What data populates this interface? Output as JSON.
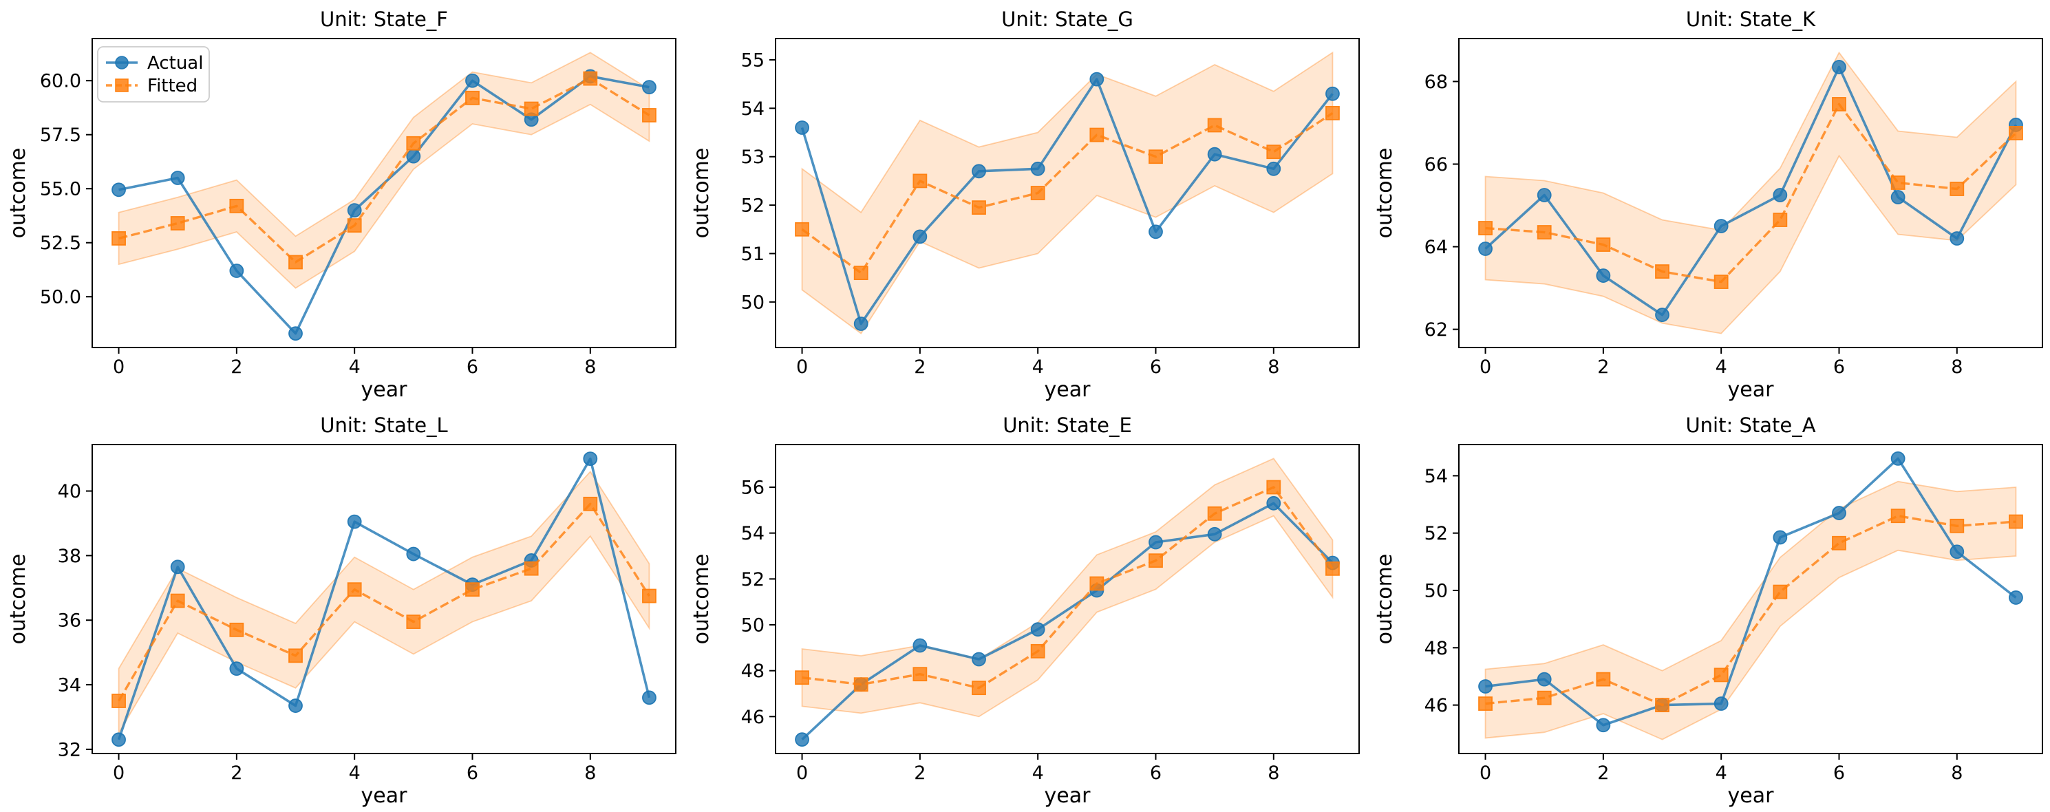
{
  "figure": {
    "background": "#ffffff",
    "text_color": "#000000",
    "spine_color": "#000000",
    "colors": {
      "actual": "#1f77b4",
      "fitted": "#ff7f0e",
      "band_fill": "#ff7f0e",
      "band_fill_opacity": 0.19,
      "band_edge_opacity": 0.35,
      "line_opacity": 0.8
    },
    "legend": {
      "location": "upper left",
      "shown_on_subplot": "Unit: State_F",
      "border_color": "#cccccc",
      "items": [
        {
          "label": "Actual",
          "color": "#1f77b4",
          "marker": "circle",
          "line": "solid"
        },
        {
          "label": "Fitted",
          "color": "#ff7f0e",
          "marker": "square",
          "line": "dashed"
        }
      ]
    }
  },
  "chart_data": [
    {
      "type": "line",
      "title": "Unit: State_F",
      "xlabel": "year",
      "ylabel": "outcome",
      "x": [
        0,
        1,
        2,
        3,
        4,
        5,
        6,
        7,
        8,
        9
      ],
      "series": [
        {
          "name": "Actual",
          "values": [
            54.95,
            55.5,
            51.2,
            48.3,
            54.0,
            56.5,
            60.0,
            58.2,
            60.2,
            59.7
          ]
        },
        {
          "name": "Fitted",
          "values": [
            52.7,
            53.4,
            54.2,
            51.6,
            53.3,
            57.1,
            59.2,
            58.7,
            60.1,
            58.4
          ]
        }
      ],
      "band": {
        "around": "Fitted",
        "half_width": 1.2
      },
      "xlim": [
        -0.45,
        9.45
      ],
      "ylim": [
        47.65,
        61.95
      ],
      "xticks": [
        "0",
        "2",
        "4",
        "6",
        "8"
      ],
      "yticks": [
        "50.0",
        "52.5",
        "55.0",
        "57.5",
        "60.0"
      ],
      "grid": false,
      "show_legend": true
    },
    {
      "type": "line",
      "title": "Unit: State_G",
      "xlabel": "year",
      "ylabel": "outcome",
      "x": [
        0,
        1,
        2,
        3,
        4,
        5,
        6,
        7,
        8,
        9
      ],
      "series": [
        {
          "name": "Actual",
          "values": [
            53.6,
            49.55,
            51.35,
            52.7,
            52.75,
            54.6,
            51.45,
            53.05,
            52.75,
            54.3
          ]
        },
        {
          "name": "Fitted",
          "values": [
            51.5,
            50.6,
            52.5,
            51.95,
            52.25,
            53.45,
            53.0,
            53.65,
            53.1,
            53.9
          ]
        }
      ],
      "band": {
        "around": "Fitted",
        "half_width": 1.25
      },
      "xlim": [
        -0.45,
        9.45
      ],
      "ylim": [
        49.06,
        55.44
      ],
      "xticks": [
        "0",
        "2",
        "4",
        "6",
        "8"
      ],
      "yticks": [
        "50",
        "51",
        "52",
        "53",
        "54",
        "55"
      ],
      "grid": false,
      "show_legend": false
    },
    {
      "type": "line",
      "title": "Unit: State_K",
      "xlabel": "year",
      "ylabel": "outcome",
      "x": [
        0,
        1,
        2,
        3,
        4,
        5,
        6,
        7,
        8,
        9
      ],
      "series": [
        {
          "name": "Actual",
          "values": [
            63.95,
            65.25,
            63.3,
            62.35,
            64.5,
            65.25,
            68.35,
            65.2,
            64.2,
            66.95
          ]
        },
        {
          "name": "Fitted",
          "values": [
            64.45,
            64.35,
            64.05,
            63.4,
            63.15,
            64.65,
            67.45,
            65.55,
            65.4,
            66.75
          ]
        }
      ],
      "band": {
        "around": "Fitted",
        "half_width": 1.25
      },
      "xlim": [
        -0.45,
        9.45
      ],
      "ylim": [
        61.56,
        69.04
      ],
      "xticks": [
        "0",
        "2",
        "4",
        "6",
        "8"
      ],
      "yticks": [
        "62",
        "64",
        "66",
        "68"
      ],
      "grid": false,
      "show_legend": false
    },
    {
      "type": "line",
      "title": "Unit: State_L",
      "xlabel": "year",
      "ylabel": "outcome",
      "x": [
        0,
        1,
        2,
        3,
        4,
        5,
        6,
        7,
        8,
        9
      ],
      "series": [
        {
          "name": "Actual",
          "values": [
            32.3,
            37.65,
            34.5,
            33.35,
            39.05,
            38.05,
            37.1,
            37.85,
            41.0,
            33.6
          ]
        },
        {
          "name": "Fitted",
          "values": [
            33.5,
            36.6,
            35.7,
            34.9,
            36.95,
            35.95,
            36.95,
            37.6,
            39.6,
            36.75
          ]
        }
      ],
      "band": {
        "around": "Fitted",
        "half_width": 1.0
      },
      "xlim": [
        -0.45,
        9.45
      ],
      "ylim": [
        31.87,
        41.44
      ],
      "xticks": [
        "0",
        "2",
        "4",
        "6",
        "8"
      ],
      "yticks": [
        "32",
        "34",
        "36",
        "38",
        "40"
      ],
      "grid": false,
      "show_legend": false
    },
    {
      "type": "line",
      "title": "Unit: State_E",
      "xlabel": "year",
      "ylabel": "outcome",
      "x": [
        0,
        1,
        2,
        3,
        4,
        5,
        6,
        7,
        8,
        9
      ],
      "series": [
        {
          "name": "Actual",
          "values": [
            45.0,
            47.4,
            49.1,
            48.5,
            49.8,
            51.5,
            53.6,
            53.95,
            55.3,
            52.7
          ]
        },
        {
          "name": "Fitted",
          "values": [
            47.7,
            47.4,
            47.85,
            47.25,
            48.85,
            51.8,
            52.8,
            54.85,
            56.0,
            52.45
          ]
        }
      ],
      "band": {
        "around": "Fitted",
        "half_width": 1.25
      },
      "xlim": [
        -0.45,
        9.45
      ],
      "ylim": [
        44.39,
        57.86
      ],
      "xticks": [
        "0",
        "2",
        "4",
        "6",
        "8"
      ],
      "yticks": [
        "46",
        "48",
        "50",
        "52",
        "54",
        "56"
      ],
      "grid": false,
      "show_legend": false
    },
    {
      "type": "line",
      "title": "Unit: State_A",
      "xlabel": "year",
      "ylabel": "outcome",
      "x": [
        0,
        1,
        2,
        3,
        4,
        5,
        6,
        7,
        8,
        9
      ],
      "series": [
        {
          "name": "Actual",
          "values": [
            46.65,
            46.9,
            45.3,
            46.0,
            46.05,
            51.85,
            52.7,
            54.6,
            51.35,
            49.75
          ]
        },
        {
          "name": "Fitted",
          "values": [
            46.05,
            46.25,
            46.9,
            46.0,
            47.05,
            49.95,
            51.65,
            52.6,
            52.25,
            52.4
          ]
        }
      ],
      "band": {
        "around": "Fitted",
        "half_width": 1.2
      },
      "xlim": [
        -0.45,
        9.45
      ],
      "ylim": [
        44.31,
        55.09
      ],
      "xticks": [
        "0",
        "2",
        "4",
        "6",
        "8"
      ],
      "yticks": [
        "46",
        "48",
        "50",
        "52",
        "54"
      ],
      "grid": false,
      "show_legend": false
    }
  ]
}
